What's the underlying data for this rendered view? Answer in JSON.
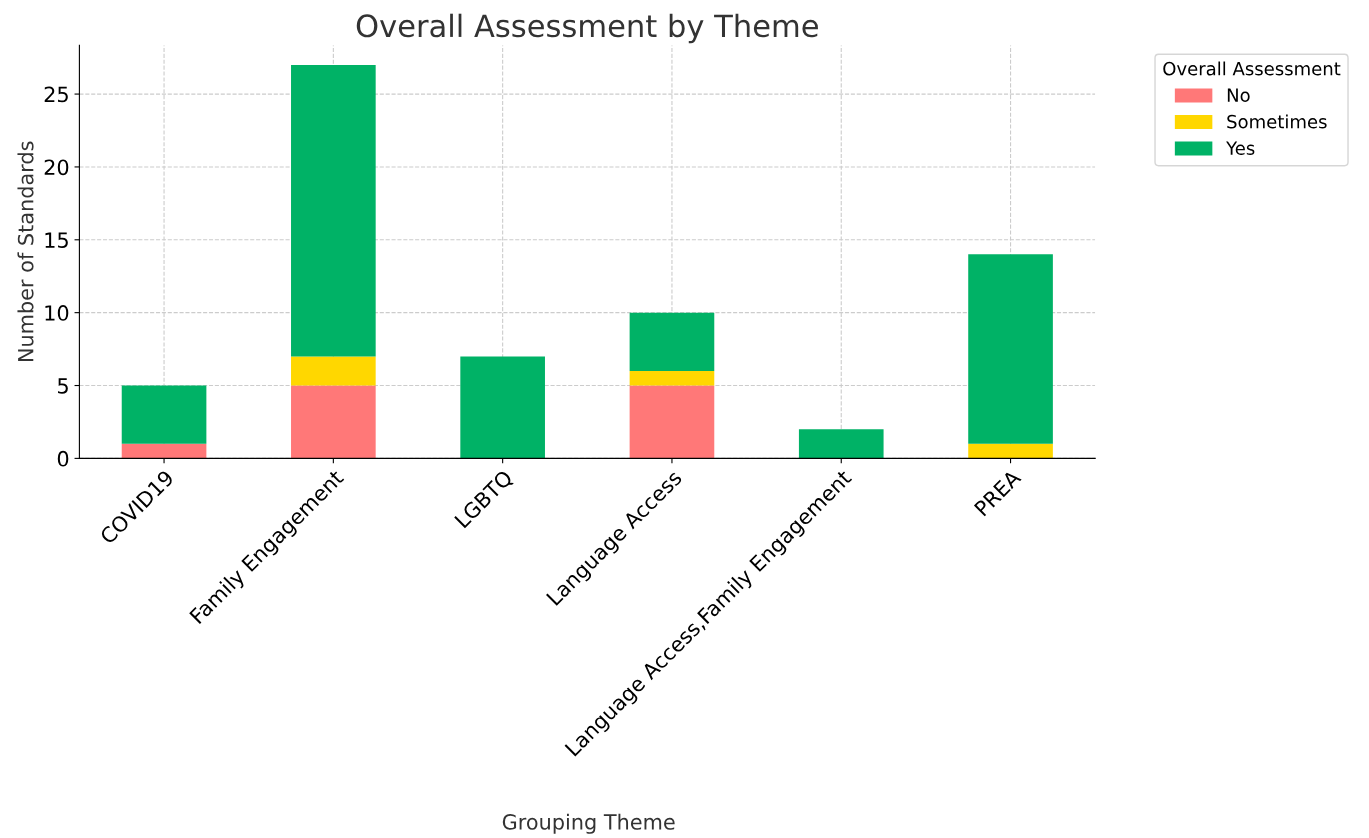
{
  "chart_data": {
    "type": "bar",
    "title": "Overall Assessment by Theme",
    "xlabel": "Grouping Theme",
    "ylabel": "Number of Standards",
    "legend_title": "Overall Assessment",
    "categories": [
      "COVID19",
      "Family Engagement",
      "LGBTQ",
      "Language Access",
      "Language Access,Family Engagement",
      "PREA"
    ],
    "series": [
      {
        "name": "No",
        "color": "#ff7878",
        "values": [
          1,
          5,
          0,
          5,
          0,
          0
        ]
      },
      {
        "name": "Sometimes",
        "color": "#ffd700",
        "values": [
          0,
          2,
          0,
          1,
          0,
          1
        ]
      },
      {
        "name": "Yes",
        "color": "#00b266",
        "values": [
          4,
          20,
          7,
          4,
          2,
          13
        ]
      }
    ],
    "stacked": true,
    "ylim": [
      0,
      28.35
    ],
    "yticks": [
      0,
      5,
      10,
      15,
      20,
      25
    ],
    "grid": true,
    "legend": "top right"
  }
}
